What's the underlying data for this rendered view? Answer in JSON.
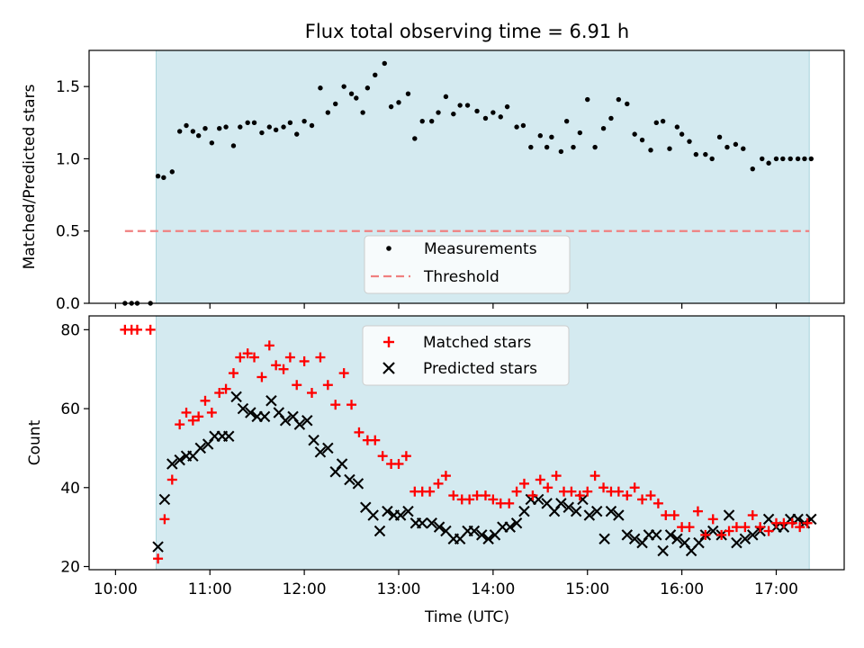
{
  "figure": {
    "title": "Flux total observing time = 6.91 h",
    "shaded_span_x": [
      10.43,
      17.35
    ],
    "shade_color": "#d4eaf0",
    "xlim": [
      9.72,
      17.72
    ],
    "xticks": [
      10,
      11,
      12,
      13,
      14,
      15,
      16,
      17
    ],
    "xtick_labels": [
      "10:00",
      "11:00",
      "12:00",
      "13:00",
      "14:00",
      "15:00",
      "16:00",
      "17:00"
    ],
    "xlabel": "Time (UTC)"
  },
  "chart_data": [
    {
      "type": "scatter",
      "panel": "top",
      "title": "Flux total observing time = 6.91 h",
      "xlabel": "",
      "ylabel": "Matched/Predicted stars",
      "ylim": [
        0,
        1.75
      ],
      "yticks": [
        0.0,
        0.5,
        1.0,
        1.5
      ],
      "ytick_labels": [
        "0.0",
        "0.5",
        "1.0",
        "1.5"
      ],
      "legend_position": "bottom-center",
      "series": [
        {
          "name": "Measurements",
          "kind": "scatter",
          "marker": "dot",
          "color": "#000000",
          "x": [
            10.1,
            10.17,
            10.23,
            10.37,
            10.45,
            10.51,
            10.6,
            10.68,
            10.75,
            10.82,
            10.88,
            10.95,
            11.02,
            11.1,
            11.17,
            11.25,
            11.32,
            11.4,
            11.47,
            11.55,
            11.63,
            11.7,
            11.78,
            11.85,
            11.92,
            12.0,
            12.08,
            12.17,
            12.25,
            12.33,
            12.42,
            12.5,
            12.55,
            12.62,
            12.67,
            12.75,
            12.85,
            12.92,
            13.0,
            13.1,
            13.17,
            13.25,
            13.35,
            13.42,
            13.5,
            13.58,
            13.65,
            13.73,
            13.83,
            13.92,
            14.0,
            14.08,
            14.15,
            14.25,
            14.32,
            14.4,
            14.5,
            14.57,
            14.62,
            14.72,
            14.78,
            14.85,
            14.92,
            15.0,
            15.08,
            15.17,
            15.25,
            15.33,
            15.42,
            15.5,
            15.58,
            15.67,
            15.73,
            15.8,
            15.87,
            15.95,
            16.0,
            16.08,
            16.15,
            16.25,
            16.32,
            16.4,
            16.48,
            16.57,
            16.65,
            16.75,
            16.85,
            16.92,
            17.0,
            17.07,
            17.15,
            17.23,
            17.3,
            17.37
          ],
          "y": [
            0.0,
            0.0,
            0.0,
            0.0,
            0.88,
            0.87,
            0.91,
            1.19,
            1.23,
            1.19,
            1.16,
            1.21,
            1.11,
            1.21,
            1.22,
            1.09,
            1.22,
            1.25,
            1.25,
            1.18,
            1.22,
            1.2,
            1.22,
            1.25,
            1.17,
            1.26,
            1.23,
            1.49,
            1.32,
            1.38,
            1.5,
            1.45,
            1.42,
            1.32,
            1.49,
            1.58,
            1.66,
            1.36,
            1.39,
            1.45,
            1.14,
            1.26,
            1.26,
            1.32,
            1.43,
            1.31,
            1.37,
            1.37,
            1.33,
            1.28,
            1.32,
            1.29,
            1.36,
            1.22,
            1.23,
            1.08,
            1.16,
            1.08,
            1.15,
            1.05,
            1.26,
            1.08,
            1.18,
            1.41,
            1.08,
            1.21,
            1.28,
            1.41,
            1.38,
            1.17,
            1.13,
            1.06,
            1.25,
            1.26,
            1.07,
            1.22,
            1.17,
            1.12,
            1.03,
            1.03,
            1.0,
            1.15,
            1.08,
            1.1,
            1.07,
            0.93,
            1.0,
            0.97,
            1.0,
            1.0,
            1.0,
            1.0,
            1.0,
            1.0
          ]
        },
        {
          "name": "Threshold",
          "kind": "line",
          "style": "dashed",
          "color": "#f08080",
          "x": [
            10.1,
            17.35
          ],
          "y": [
            0.5,
            0.5
          ]
        }
      ]
    },
    {
      "type": "scatter",
      "panel": "bottom",
      "xlabel": "Time (UTC)",
      "ylabel": "Count",
      "ylim": [
        19.2,
        83.5
      ],
      "yticks": [
        20,
        40,
        60,
        80
      ],
      "ytick_labels": [
        "20",
        "40",
        "60",
        "80"
      ],
      "legend_position": "top-center",
      "series": [
        {
          "name": "Matched stars",
          "marker": "plus",
          "color": "#ff0000",
          "x": [
            10.1,
            10.17,
            10.23,
            10.37,
            10.45,
            10.52,
            10.6,
            10.68,
            10.75,
            10.82,
            10.88,
            10.95,
            11.02,
            11.1,
            11.17,
            11.25,
            11.32,
            11.4,
            11.47,
            11.55,
            11.63,
            11.7,
            11.78,
            11.85,
            11.92,
            12.0,
            12.08,
            12.17,
            12.25,
            12.33,
            12.42,
            12.5,
            12.58,
            12.67,
            12.75,
            12.83,
            12.92,
            13.0,
            13.08,
            13.17,
            13.25,
            13.33,
            13.42,
            13.5,
            13.58,
            13.67,
            13.75,
            13.83,
            13.92,
            14.0,
            14.08,
            14.17,
            14.25,
            14.33,
            14.42,
            14.5,
            14.58,
            14.67,
            14.75,
            14.83,
            14.92,
            15.0,
            15.08,
            15.17,
            15.25,
            15.33,
            15.42,
            15.5,
            15.58,
            15.67,
            15.75,
            15.83,
            15.92,
            16.0,
            16.08,
            16.17,
            16.25,
            16.33,
            16.42,
            16.5,
            16.58,
            16.67,
            16.75,
            16.83,
            16.92,
            17.0,
            17.08,
            17.17,
            17.25,
            17.33
          ],
          "y": [
            80,
            80,
            80,
            80,
            22,
            32,
            42,
            56,
            59,
            57,
            58,
            62,
            59,
            64,
            65,
            69,
            73,
            74,
            73,
            68,
            76,
            71,
            70,
            73,
            66,
            72,
            64,
            73,
            66,
            61,
            69,
            61,
            54,
            52,
            52,
            48,
            46,
            46,
            48,
            39,
            39,
            39,
            41,
            43,
            38,
            37,
            37,
            38,
            38,
            37,
            36,
            36,
            39,
            41,
            38,
            42,
            40,
            43,
            39,
            39,
            38,
            39,
            43,
            40,
            39,
            39,
            38,
            40,
            37,
            38,
            36,
            33,
            33,
            30,
            30,
            34,
            28,
            32,
            28,
            29,
            30,
            30,
            33,
            30,
            29,
            31,
            31,
            31,
            30,
            31
          ]
        },
        {
          "name": "Predicted stars",
          "marker": "x",
          "color": "#000000",
          "x": [
            10.45,
            10.52,
            10.6,
            10.68,
            10.75,
            10.82,
            10.9,
            10.98,
            11.05,
            11.13,
            11.2,
            11.28,
            11.35,
            11.43,
            11.5,
            11.58,
            11.65,
            11.73,
            11.8,
            11.88,
            11.95,
            12.03,
            12.1,
            12.17,
            12.25,
            12.33,
            12.4,
            12.48,
            12.57,
            12.65,
            12.73,
            12.8,
            12.88,
            12.95,
            13.02,
            13.1,
            13.18,
            13.25,
            13.35,
            13.43,
            13.5,
            13.58,
            13.65,
            13.73,
            13.8,
            13.88,
            13.95,
            14.02,
            14.1,
            14.18,
            14.25,
            14.33,
            14.4,
            14.48,
            14.57,
            14.65,
            14.72,
            14.8,
            14.88,
            14.95,
            15.02,
            15.1,
            15.18,
            15.25,
            15.33,
            15.42,
            15.5,
            15.58,
            15.65,
            15.73,
            15.8,
            15.88,
            15.95,
            16.03,
            16.1,
            16.18,
            16.25,
            16.33,
            16.42,
            16.5,
            16.58,
            16.67,
            16.75,
            16.83,
            16.92,
            17.0,
            17.08,
            17.15,
            17.23,
            17.3,
            17.37
          ],
          "y": [
            25,
            37,
            46,
            47,
            48,
            48,
            50,
            51,
            53,
            53,
            53,
            63,
            60,
            59,
            58,
            58,
            62,
            59,
            57,
            58,
            56,
            57,
            52,
            49,
            50,
            44,
            46,
            42,
            41,
            35,
            33,
            29,
            34,
            33,
            33,
            34,
            31,
            31,
            31,
            30,
            29,
            27,
            27,
            29,
            29,
            28,
            27,
            28,
            30,
            30,
            31,
            34,
            37,
            37,
            36,
            34,
            36,
            35,
            34,
            37,
            33,
            34,
            27,
            34,
            33,
            28,
            27,
            26,
            28,
            28,
            24,
            28,
            27,
            26,
            24,
            26,
            28,
            29,
            28,
            33,
            26,
            27,
            28,
            29,
            32,
            30,
            30,
            32,
            32,
            31,
            32
          ]
        }
      ]
    }
  ]
}
